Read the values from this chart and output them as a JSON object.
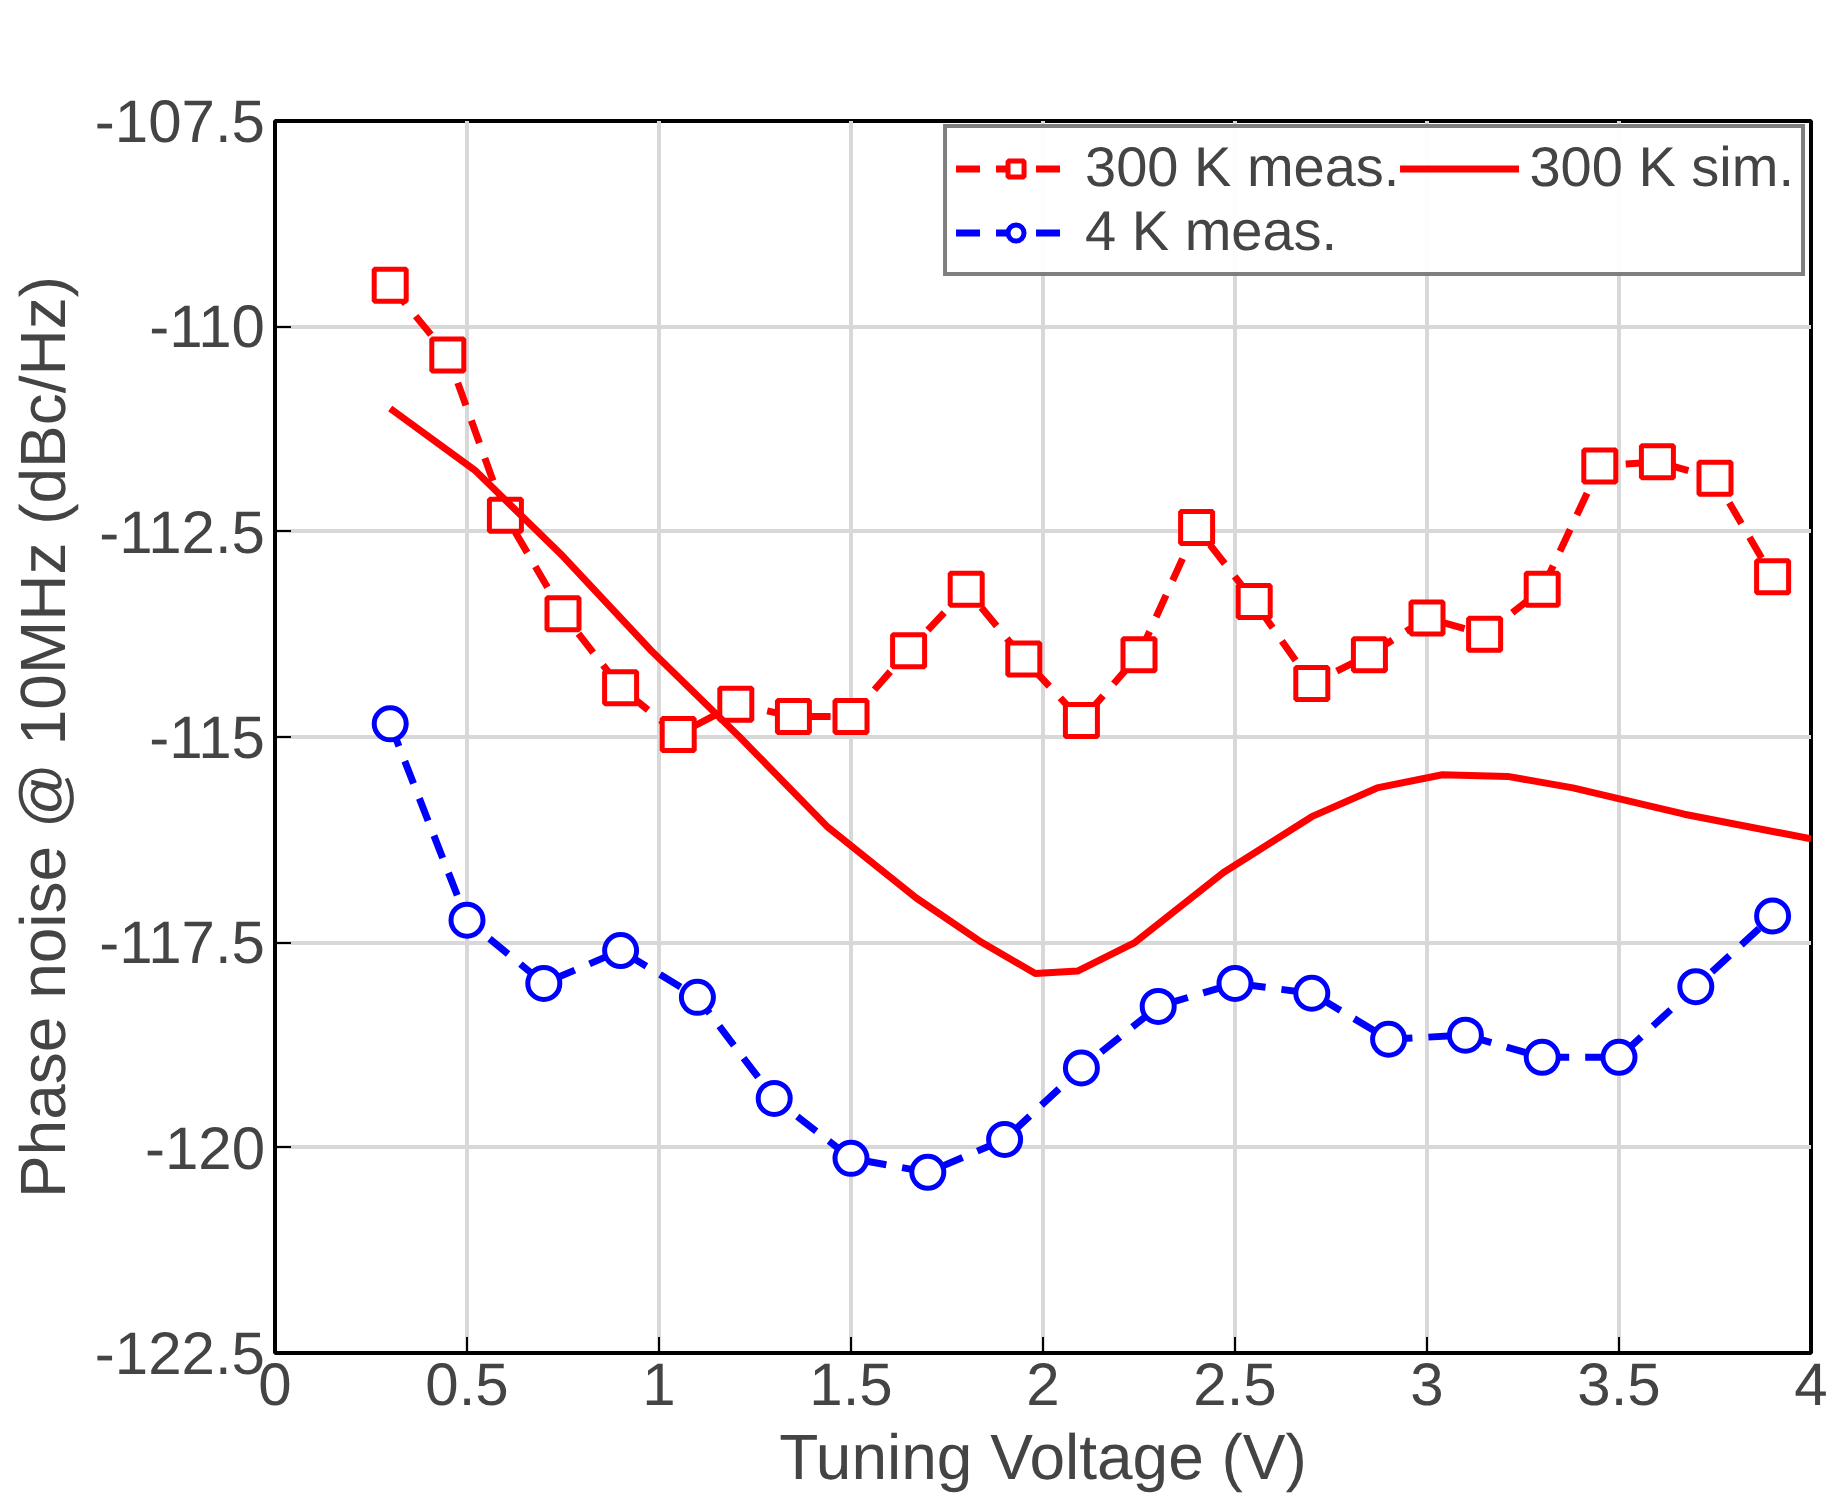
{
  "chart_data": {
    "type": "line",
    "xlabel": "Tuning Voltage (V)",
    "ylabel": "Phase noise @ 10MHz (dBc/Hz)",
    "xlim": [
      0,
      4
    ],
    "xticks": [
      0,
      0.5,
      1,
      1.5,
      2,
      2.5,
      3,
      3.5,
      4
    ],
    "ylim": [
      -122.5,
      -107.5
    ],
    "yticks": [
      -122.5,
      -120,
      -117.5,
      -115,
      -112.5,
      -110,
      -107.5
    ],
    "grid": true,
    "legend": "top right",
    "series": [
      {
        "name": "300 K meas.",
        "color": "#ff0000",
        "marker": "square",
        "line_style": "dashed",
        "x": [
          0.3,
          0.45,
          0.6,
          0.75,
          0.9,
          1.05,
          1.2,
          1.35,
          1.5,
          1.65,
          1.8,
          1.95,
          2.1,
          2.25,
          2.4,
          2.55,
          2.7,
          2.85,
          3.0,
          3.15,
          3.3,
          3.45,
          3.6,
          3.75,
          3.9
        ],
        "values": [
          -109.5,
          -110.35,
          -112.3,
          -113.5,
          -114.4,
          -114.97,
          -114.6,
          -114.75,
          -114.75,
          -113.95,
          -113.2,
          -114.05,
          -114.8,
          -114.0,
          -112.45,
          -113.35,
          -114.35,
          -114.0,
          -113.55,
          -113.75,
          -113.2,
          -111.7,
          -111.65,
          -111.85,
          -113.05
        ]
      },
      {
        "name": "4 K meas.",
        "color": "#0000ff",
        "marker": "circle",
        "line_style": "dashed",
        "x": [
          0.3,
          0.5,
          0.7,
          0.9,
          1.1,
          1.3,
          1.5,
          1.7,
          1.9,
          2.1,
          2.3,
          2.5,
          2.7,
          2.9,
          3.1,
          3.3,
          3.5,
          3.7,
          3.9
        ],
        "values": [
          -114.84,
          -117.23,
          -118.0,
          -117.6,
          -118.17,
          -119.4,
          -120.13,
          -120.3,
          -119.9,
          -119.03,
          -118.28,
          -118.0,
          -118.12,
          -118.68,
          -118.63,
          -118.9,
          -118.9,
          -118.04,
          -117.18
        ]
      },
      {
        "name": "300 K sim.",
        "color": "#ff0000",
        "marker": "none",
        "line_style": "solid",
        "x": [
          0.3,
          0.52,
          0.75,
          0.98,
          1.21,
          1.44,
          1.67,
          1.84,
          1.98,
          2.09,
          2.24,
          2.47,
          2.7,
          2.87,
          3.04,
          3.21,
          3.38,
          3.67,
          4.0
        ],
        "values": [
          -111.0,
          -111.75,
          -112.8,
          -113.95,
          -115.0,
          -116.1,
          -116.96,
          -117.5,
          -117.88,
          -117.85,
          -117.5,
          -116.65,
          -115.97,
          -115.62,
          -115.46,
          -115.48,
          -115.62,
          -115.94,
          -116.24
        ]
      }
    ]
  }
}
